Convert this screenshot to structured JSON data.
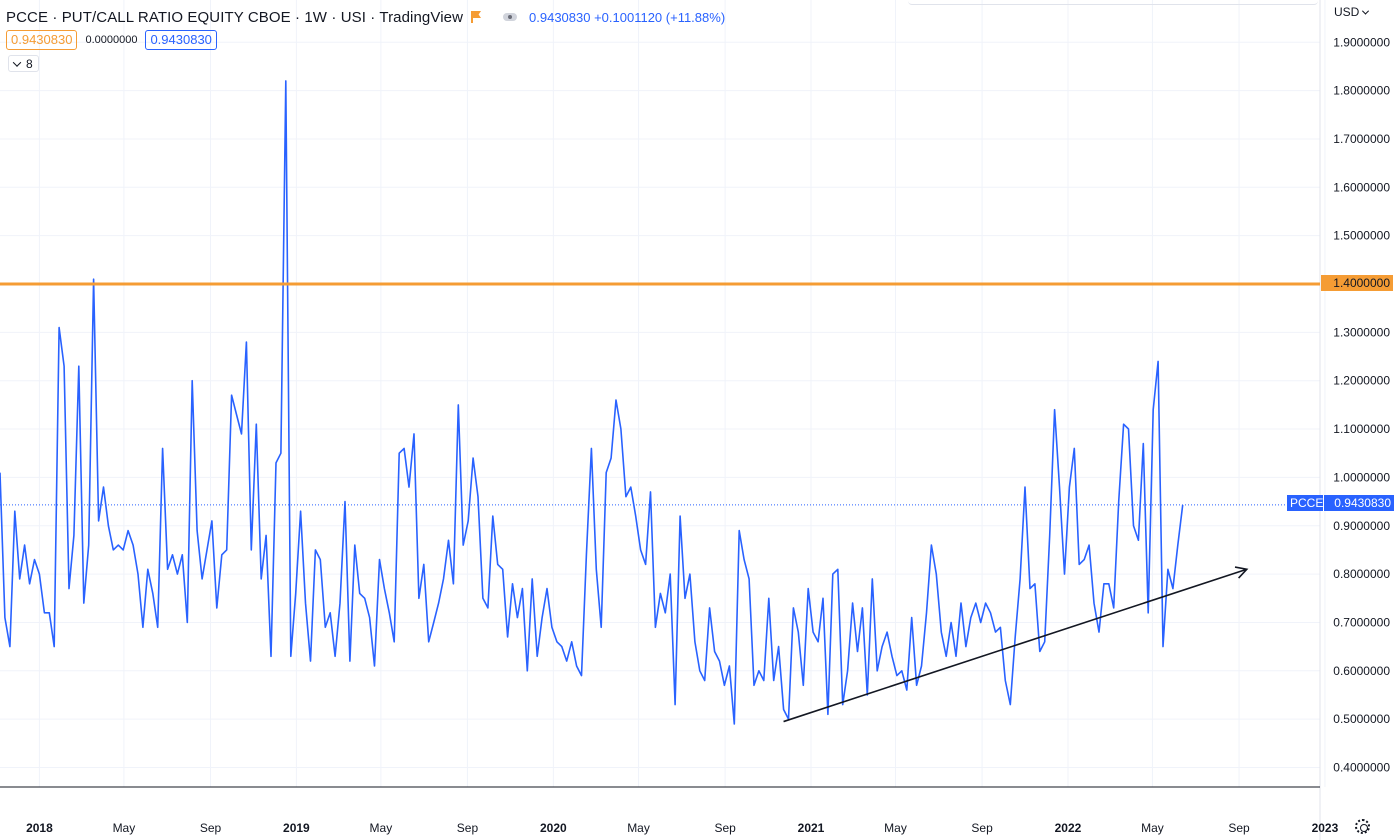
{
  "header": {
    "title": "PCCE · PUT/CALL RATIO EQUITY CBOE · 1W · USI · TradingView",
    "price_summary": "0.9430830 +0.1001120 (+11.88%)",
    "values": [
      "0.9430830",
      "0.0000000",
      "0.9430830"
    ],
    "collapse_count": "8",
    "currency": "USD"
  },
  "badges": {
    "horizontal_line_value": "1.4000000",
    "symbol": "PCCE",
    "last_value": "0.9430830"
  },
  "colors": {
    "series": "#2962ff",
    "horizontal_line": "#f59c34",
    "trendline": "#131722",
    "grid": "#f0f3fa"
  },
  "chart_data": {
    "type": "line",
    "y_axis": {
      "min": 0.35,
      "max": 1.92,
      "ticks": [
        "0.4000000",
        "0.5000000",
        "0.6000000",
        "0.7000000",
        "0.8000000",
        "0.9000000",
        "1.0000000",
        "1.1000000",
        "1.2000000",
        "1.3000000",
        "1.4000000",
        "1.5000000",
        "1.6000000",
        "1.7000000",
        "1.8000000",
        "1.9000000"
      ],
      "side": "right"
    },
    "x_axis": {
      "start": "2017-11-06",
      "end": "2023-03-06",
      "ticks": [
        {
          "label": "2018",
          "date": "2018-01-01"
        },
        {
          "label": "May",
          "date": "2018-05-01"
        },
        {
          "label": "Sep",
          "date": "2018-09-01"
        },
        {
          "label": "2019",
          "date": "2019-01-01"
        },
        {
          "label": "May",
          "date": "2019-05-01"
        },
        {
          "label": "Sep",
          "date": "2019-09-01"
        },
        {
          "label": "2020",
          "date": "2020-01-01"
        },
        {
          "label": "May",
          "date": "2020-05-01"
        },
        {
          "label": "Sep",
          "date": "2020-09-01"
        },
        {
          "label": "2021",
          "date": "2021-01-01"
        },
        {
          "label": "May",
          "date": "2021-05-01"
        },
        {
          "label": "Sep",
          "date": "2021-09-01"
        },
        {
          "label": "2022",
          "date": "2022-01-01"
        },
        {
          "label": "May",
          "date": "2022-05-01"
        },
        {
          "label": "Sep",
          "date": "2022-09-01"
        },
        {
          "label": "2023",
          "date": "2023-01-01"
        }
      ]
    },
    "grid": true,
    "horizontal_line": 1.4,
    "last_value": 0.943083,
    "trendline": {
      "start": {
        "date": "2020-11-23",
        "value": 0.495
      },
      "end": {
        "date": "2022-09-12",
        "value": 0.81
      },
      "arrow": true
    },
    "series": [
      {
        "first_date": "2017-11-06",
        "interval_days": 7,
        "values": [
          1.01,
          0.71,
          0.65,
          0.93,
          0.79,
          0.86,
          0.78,
          0.83,
          0.8,
          0.72,
          0.72,
          0.65,
          1.31,
          1.23,
          0.77,
          0.88,
          1.23,
          0.74,
          0.86,
          1.41,
          0.91,
          0.98,
          0.9,
          0.85,
          0.86,
          0.85,
          0.89,
          0.86,
          0.8,
          0.69,
          0.81,
          0.76,
          0.69,
          1.06,
          0.81,
          0.84,
          0.8,
          0.84,
          0.7,
          1.2,
          0.89,
          0.79,
          0.85,
          0.91,
          0.73,
          0.84,
          0.85,
          1.17,
          1.13,
          1.09,
          1.28,
          0.85,
          1.11,
          0.79,
          0.88,
          0.63,
          1.03,
          1.05,
          1.82,
          0.63,
          0.76,
          0.93,
          0.74,
          0.62,
          0.85,
          0.83,
          0.69,
          0.72,
          0.63,
          0.74,
          0.95,
          0.62,
          0.86,
          0.76,
          0.75,
          0.71,
          0.61,
          0.83,
          0.77,
          0.72,
          0.66,
          1.05,
          1.06,
          0.98,
          1.09,
          0.75,
          0.82,
          0.66,
          0.7,
          0.74,
          0.79,
          0.87,
          0.78,
          1.15,
          0.86,
          0.91,
          1.04,
          0.96,
          0.75,
          0.73,
          0.92,
          0.82,
          0.81,
          0.67,
          0.78,
          0.71,
          0.77,
          0.6,
          0.79,
          0.63,
          0.71,
          0.77,
          0.69,
          0.66,
          0.65,
          0.62,
          0.66,
          0.61,
          0.59,
          0.84,
          1.06,
          0.81,
          0.69,
          1.01,
          1.04,
          1.16,
          1.1,
          0.96,
          0.98,
          0.92,
          0.85,
          0.82,
          0.97,
          0.69,
          0.76,
          0.72,
          0.8,
          0.53,
          0.92,
          0.75,
          0.8,
          0.66,
          0.6,
          0.58,
          0.73,
          0.64,
          0.62,
          0.57,
          0.61,
          0.49,
          0.89,
          0.83,
          0.79,
          0.57,
          0.6,
          0.58,
          0.75,
          0.58,
          0.65,
          0.52,
          0.5,
          0.73,
          0.68,
          0.57,
          0.77,
          0.68,
          0.66,
          0.75,
          0.51,
          0.8,
          0.81,
          0.53,
          0.6,
          0.74,
          0.64,
          0.73,
          0.55,
          0.79,
          0.6,
          0.65,
          0.68,
          0.63,
          0.59,
          0.6,
          0.56,
          0.71,
          0.57,
          0.61,
          0.72,
          0.86,
          0.8,
          0.68,
          0.63,
          0.7,
          0.63,
          0.74,
          0.65,
          0.71,
          0.74,
          0.7,
          0.74,
          0.72,
          0.68,
          0.69,
          0.58,
          0.53,
          0.67,
          0.79,
          0.98,
          0.77,
          0.78,
          0.64,
          0.66,
          0.88,
          1.14,
          0.98,
          0.8,
          0.98,
          1.06,
          0.82,
          0.83,
          0.86,
          0.74,
          0.68,
          0.78,
          0.78,
          0.73,
          0.95,
          1.11,
          1.1,
          0.9,
          0.87,
          1.07,
          0.72,
          1.14,
          1.24,
          0.65,
          0.81,
          0.77,
          0.86,
          0.943
        ]
      }
    ]
  }
}
